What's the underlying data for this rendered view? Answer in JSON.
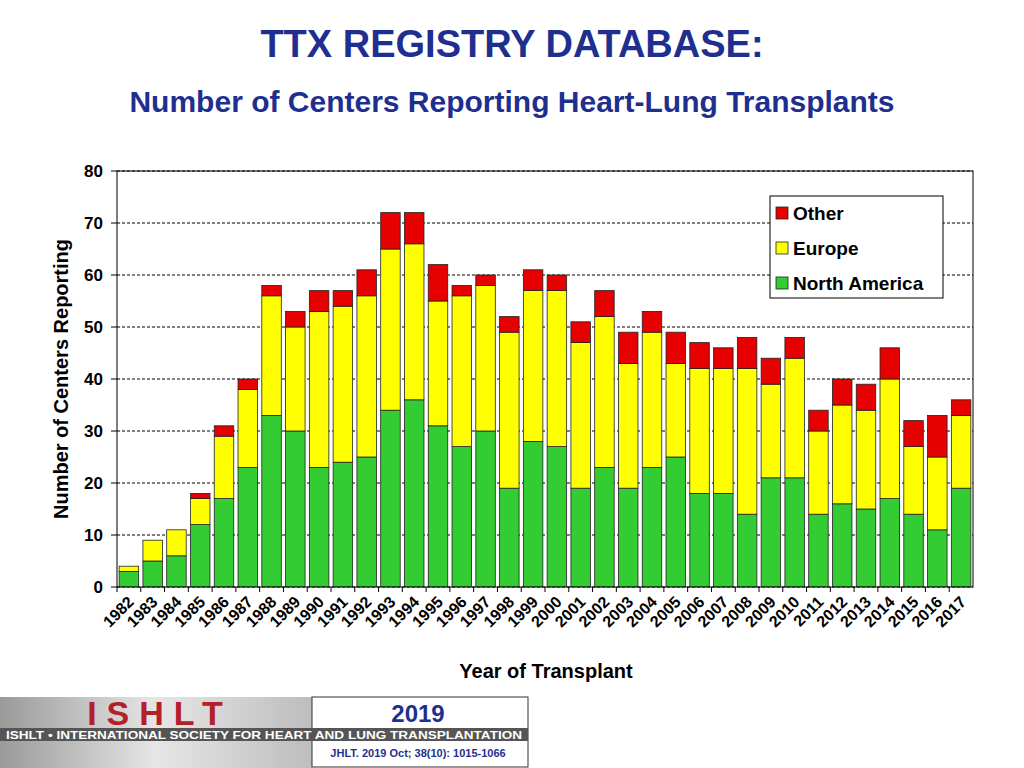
{
  "chart_data": {
    "type": "bar",
    "stacked": true,
    "title": "TTX REGISTRY DATABASE:",
    "subtitle": "Number of Centers Reporting Heart-Lung Transplants",
    "x_label": "Year of Transplant",
    "y_label": "Number of Centers Reporting",
    "categories": [
      "1982",
      "1983",
      "1984",
      "1985",
      "1986",
      "1987",
      "1988",
      "1989",
      "1990",
      "1991",
      "1992",
      "1993",
      "1994",
      "1995",
      "1996",
      "1997",
      "1998",
      "1999",
      "2000",
      "2001",
      "2002",
      "2003",
      "2004",
      "2005",
      "2006",
      "2007",
      "2008",
      "2009",
      "2010",
      "2011",
      "2012",
      "2013",
      "2014",
      "2015",
      "2016",
      "2017"
    ],
    "series": [
      {
        "name": "North America",
        "color": "#33cc33",
        "values": [
          3,
          5,
          6,
          12,
          17,
          23,
          33,
          30,
          23,
          24,
          25,
          34,
          36,
          31,
          27,
          30,
          19,
          28,
          27,
          19,
          23,
          19,
          23,
          25,
          18,
          18,
          14,
          21,
          21,
          14,
          16,
          15,
          17,
          14,
          11,
          19
        ]
      },
      {
        "name": "Europe",
        "color": "#ffff00",
        "values": [
          1,
          4,
          5,
          5,
          12,
          15,
          23,
          20,
          30,
          30,
          31,
          31,
          30,
          24,
          29,
          28,
          30,
          29,
          30,
          28,
          29,
          24,
          26,
          18,
          24,
          24,
          28,
          18,
          23,
          16,
          19,
          19,
          23,
          13,
          14,
          14
        ]
      },
      {
        "name": "Other",
        "color": "#e60000",
        "values": [
          0,
          0,
          0,
          1,
          2,
          2,
          2,
          3,
          4,
          3,
          5,
          7,
          6,
          7,
          2,
          2,
          3,
          4,
          3,
          4,
          5,
          6,
          4,
          6,
          5,
          4,
          6,
          5,
          4,
          4,
          5,
          5,
          6,
          5,
          8,
          3
        ]
      }
    ],
    "ylim": [
      0,
      80
    ],
    "yticks": [
      0,
      10,
      20,
      30,
      40,
      50,
      60,
      70,
      80
    ],
    "grid": true,
    "legend": "top-right"
  },
  "footer": {
    "logo": "ISHLT",
    "society": "ISHLT • INTERNATIONAL SOCIETY FOR HEART AND LUNG TRANSPLANTATION",
    "year": "2019",
    "citation": "JHLT. 2019 Oct; 38(10): 1015-1066"
  }
}
